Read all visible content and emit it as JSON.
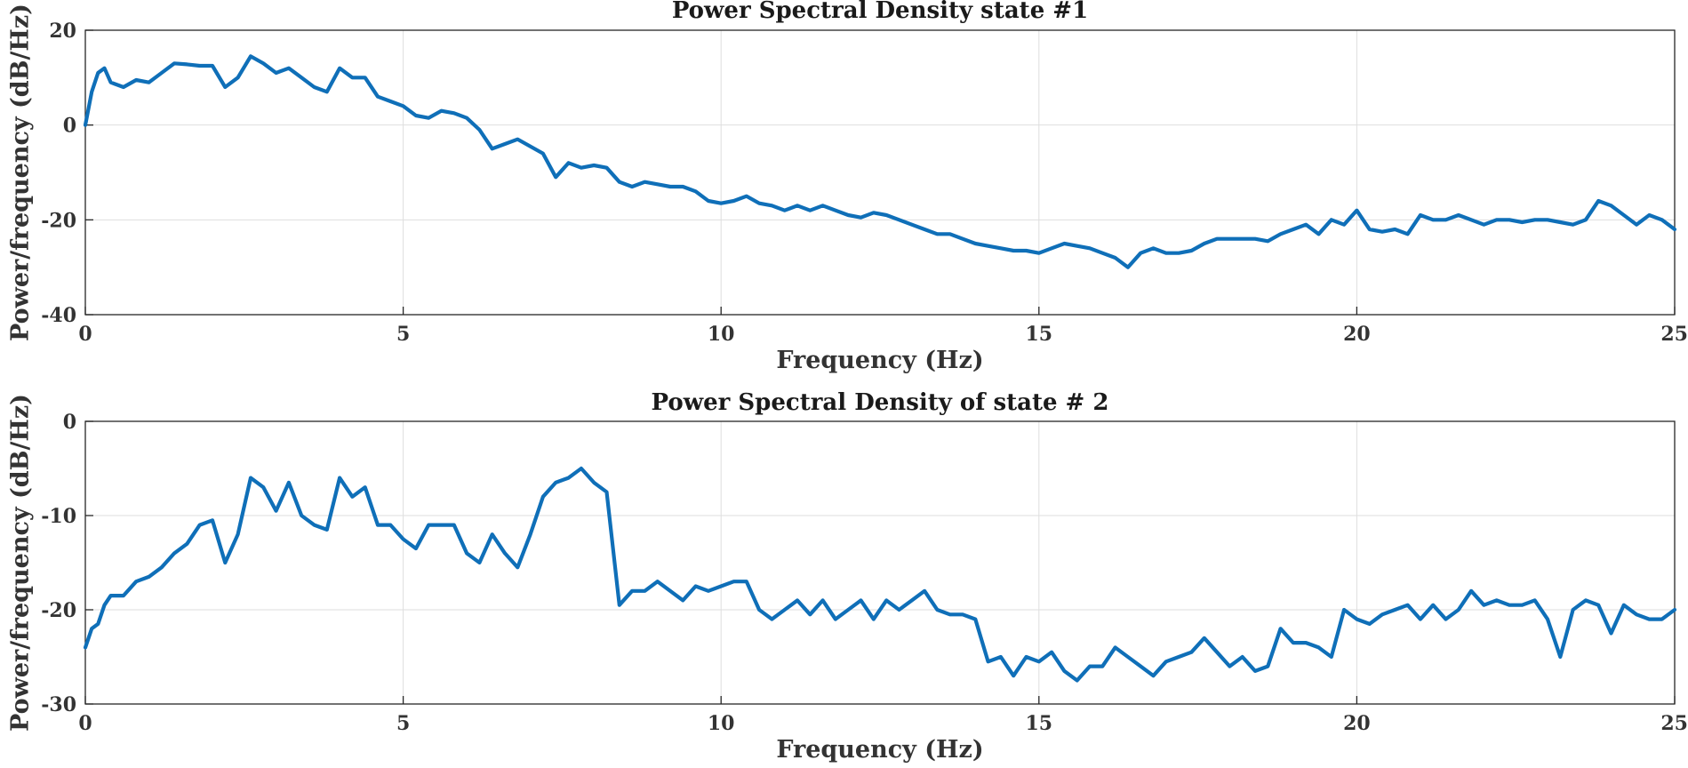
{
  "figure": {
    "name": "power-spectral-density-figure",
    "line_color": "#0f6fb8",
    "grid_color": "#dedede",
    "axis_color": "#262626"
  },
  "chart_data": [
    {
      "type": "line",
      "title": "Power Spectral Density state #1",
      "xlabel": "Frequency (Hz)",
      "ylabel": "Power/frequency (dB/Hz)",
      "xlim": [
        0,
        25
      ],
      "ylim": [
        -40,
        20
      ],
      "xticks": [
        0,
        5,
        10,
        15,
        20,
        25
      ],
      "yticks": [
        20,
        0,
        -20,
        -40
      ],
      "grid": true,
      "series": [
        {
          "name": "state #1",
          "x": [
            0,
            0.1,
            0.2,
            0.3,
            0.4,
            0.6,
            0.8,
            1.0,
            1.2,
            1.4,
            1.6,
            1.8,
            2.0,
            2.2,
            2.4,
            2.6,
            2.8,
            3.0,
            3.2,
            3.4,
            3.6,
            3.8,
            4.0,
            4.2,
            4.4,
            4.6,
            4.8,
            5.0,
            5.2,
            5.4,
            5.6,
            5.8,
            6.0,
            6.2,
            6.4,
            6.6,
            6.8,
            7.0,
            7.2,
            7.4,
            7.6,
            7.8,
            8.0,
            8.2,
            8.4,
            8.6,
            8.8,
            9.0,
            9.2,
            9.4,
            9.6,
            9.8,
            10.0,
            10.2,
            10.4,
            10.6,
            10.8,
            11.0,
            11.2,
            11.4,
            11.6,
            11.8,
            12.0,
            12.2,
            12.4,
            12.6,
            12.8,
            13.0,
            13.2,
            13.4,
            13.6,
            13.8,
            14.0,
            14.2,
            14.4,
            14.6,
            14.8,
            15.0,
            15.2,
            15.4,
            15.6,
            15.8,
            16.0,
            16.2,
            16.4,
            16.6,
            16.8,
            17.0,
            17.2,
            17.4,
            17.6,
            17.8,
            18.0,
            18.2,
            18.4,
            18.6,
            18.8,
            19.0,
            19.2,
            19.4,
            19.6,
            19.8,
            20.0,
            20.2,
            20.4,
            20.6,
            20.8,
            21.0,
            21.2,
            21.4,
            21.6,
            21.8,
            22.0,
            22.2,
            22.4,
            22.6,
            22.8,
            23.0,
            23.2,
            23.4,
            23.6,
            23.8,
            24.0,
            24.2,
            24.4,
            24.6,
            24.8,
            25.0
          ],
          "y": [
            0,
            7,
            11,
            12,
            9,
            8,
            9.5,
            9,
            11,
            13,
            12.8,
            12.5,
            12.5,
            8,
            10,
            14.5,
            13,
            11,
            12,
            10,
            8,
            7,
            12,
            10,
            10,
            6,
            5,
            4,
            2,
            1.5,
            3,
            2.5,
            1.5,
            -1,
            -5,
            -4,
            -3,
            -4.5,
            -6,
            -11,
            -8,
            -9,
            -8.5,
            -9,
            -12,
            -13,
            -12,
            -12.5,
            -13,
            -13,
            -14,
            -16,
            -16.5,
            -16,
            -15,
            -16.5,
            -17,
            -18,
            -17,
            -18,
            -17,
            -18,
            -19,
            -19.5,
            -18.5,
            -19,
            -20,
            -21,
            -22,
            -23,
            -23,
            -24,
            -25,
            -25.5,
            -26,
            -26.5,
            -26.5,
            -27,
            -26,
            -25,
            -25.5,
            -26,
            -27,
            -28,
            -30,
            -27,
            -26,
            -27,
            -27,
            -26.5,
            -25,
            -24,
            -24,
            -24,
            -24,
            -24.5,
            -23,
            -22,
            -21,
            -23,
            -20,
            -21,
            -18,
            -22,
            -22.5,
            -22,
            -23,
            -19,
            -20,
            -20,
            -19,
            -20,
            -21,
            -20,
            -20,
            -20.5,
            -20,
            -20,
            -20.5,
            -21,
            -20,
            -16,
            -17,
            -19,
            -21,
            -19,
            -20,
            -22
          ]
        }
      ]
    },
    {
      "type": "line",
      "title": "Power Spectral Density of state # 2",
      "xlabel": "Frequency (Hz)",
      "ylabel": "Power/frequency (dB/Hz)",
      "xlim": [
        0,
        25
      ],
      "ylim": [
        -30,
        0
      ],
      "xticks": [
        0,
        5,
        10,
        15,
        20,
        25
      ],
      "yticks": [
        0,
        -10,
        -20,
        -30
      ],
      "grid": true,
      "series": [
        {
          "name": "state #2",
          "x": [
            0,
            0.1,
            0.2,
            0.3,
            0.4,
            0.6,
            0.8,
            1.0,
            1.2,
            1.4,
            1.6,
            1.8,
            2.0,
            2.2,
            2.4,
            2.6,
            2.8,
            3.0,
            3.2,
            3.4,
            3.6,
            3.8,
            4.0,
            4.2,
            4.4,
            4.6,
            4.8,
            5.0,
            5.2,
            5.4,
            5.6,
            5.8,
            6.0,
            6.2,
            6.4,
            6.6,
            6.8,
            7.0,
            7.2,
            7.4,
            7.6,
            7.8,
            8.0,
            8.2,
            8.4,
            8.6,
            8.8,
            9.0,
            9.2,
            9.4,
            9.6,
            9.8,
            10.0,
            10.2,
            10.4,
            10.6,
            10.8,
            11.0,
            11.2,
            11.4,
            11.6,
            11.8,
            12.0,
            12.2,
            12.4,
            12.6,
            12.8,
            13.0,
            13.2,
            13.4,
            13.6,
            13.8,
            14.0,
            14.2,
            14.4,
            14.6,
            14.8,
            15.0,
            15.2,
            15.4,
            15.6,
            15.8,
            16.0,
            16.2,
            16.4,
            16.6,
            16.8,
            17.0,
            17.2,
            17.4,
            17.6,
            17.8,
            18.0,
            18.2,
            18.4,
            18.6,
            18.8,
            19.0,
            19.2,
            19.4,
            19.6,
            19.8,
            20.0,
            20.2,
            20.4,
            20.6,
            20.8,
            21.0,
            21.2,
            21.4,
            21.6,
            21.8,
            22.0,
            22.2,
            22.4,
            22.6,
            22.8,
            23.0,
            23.2,
            23.4,
            23.6,
            23.8,
            24.0,
            24.2,
            24.4,
            24.6,
            24.8,
            25.0
          ],
          "y": [
            -24,
            -22,
            -21.5,
            -19.5,
            -18.5,
            -18.5,
            -17,
            -16.5,
            -15.5,
            -14,
            -13,
            -11,
            -10.5,
            -15,
            -12,
            -6,
            -7,
            -9.5,
            -6.5,
            -10,
            -11,
            -11.5,
            -6,
            -8,
            -7,
            -11,
            -11,
            -12.5,
            -13.5,
            -11,
            -11,
            -11,
            -14,
            -15,
            -12,
            -14,
            -15.5,
            -12,
            -8,
            -6.5,
            -6,
            -5,
            -6.5,
            -7.5,
            -19.5,
            -18,
            -18,
            -17,
            -18,
            -19,
            -17.5,
            -18,
            -17.5,
            -17,
            -17,
            -20,
            -21,
            -20,
            -19,
            -20.5,
            -19,
            -21,
            -20,
            -19,
            -21,
            -19,
            -20,
            -19,
            -18,
            -20,
            -20.5,
            -20.5,
            -21,
            -25.5,
            -25,
            -27,
            -25,
            -25.5,
            -24.5,
            -26.5,
            -27.5,
            -26,
            -26,
            -24,
            -25,
            -26,
            -27,
            -25.5,
            -25,
            -24.5,
            -23,
            -24.5,
            -26,
            -25,
            -26.5,
            -26,
            -22,
            -23.5,
            -23.5,
            -24,
            -25,
            -20,
            -21,
            -21.5,
            -20.5,
            -20,
            -19.5,
            -21,
            -19.5,
            -21,
            -20,
            -18,
            -19.5,
            -19,
            -19.5,
            -19.5,
            -19,
            -21,
            -25,
            -20,
            -19,
            -19.5,
            -22.5,
            -19.5,
            -20.5,
            -21,
            -21,
            -20
          ]
        }
      ]
    }
  ]
}
